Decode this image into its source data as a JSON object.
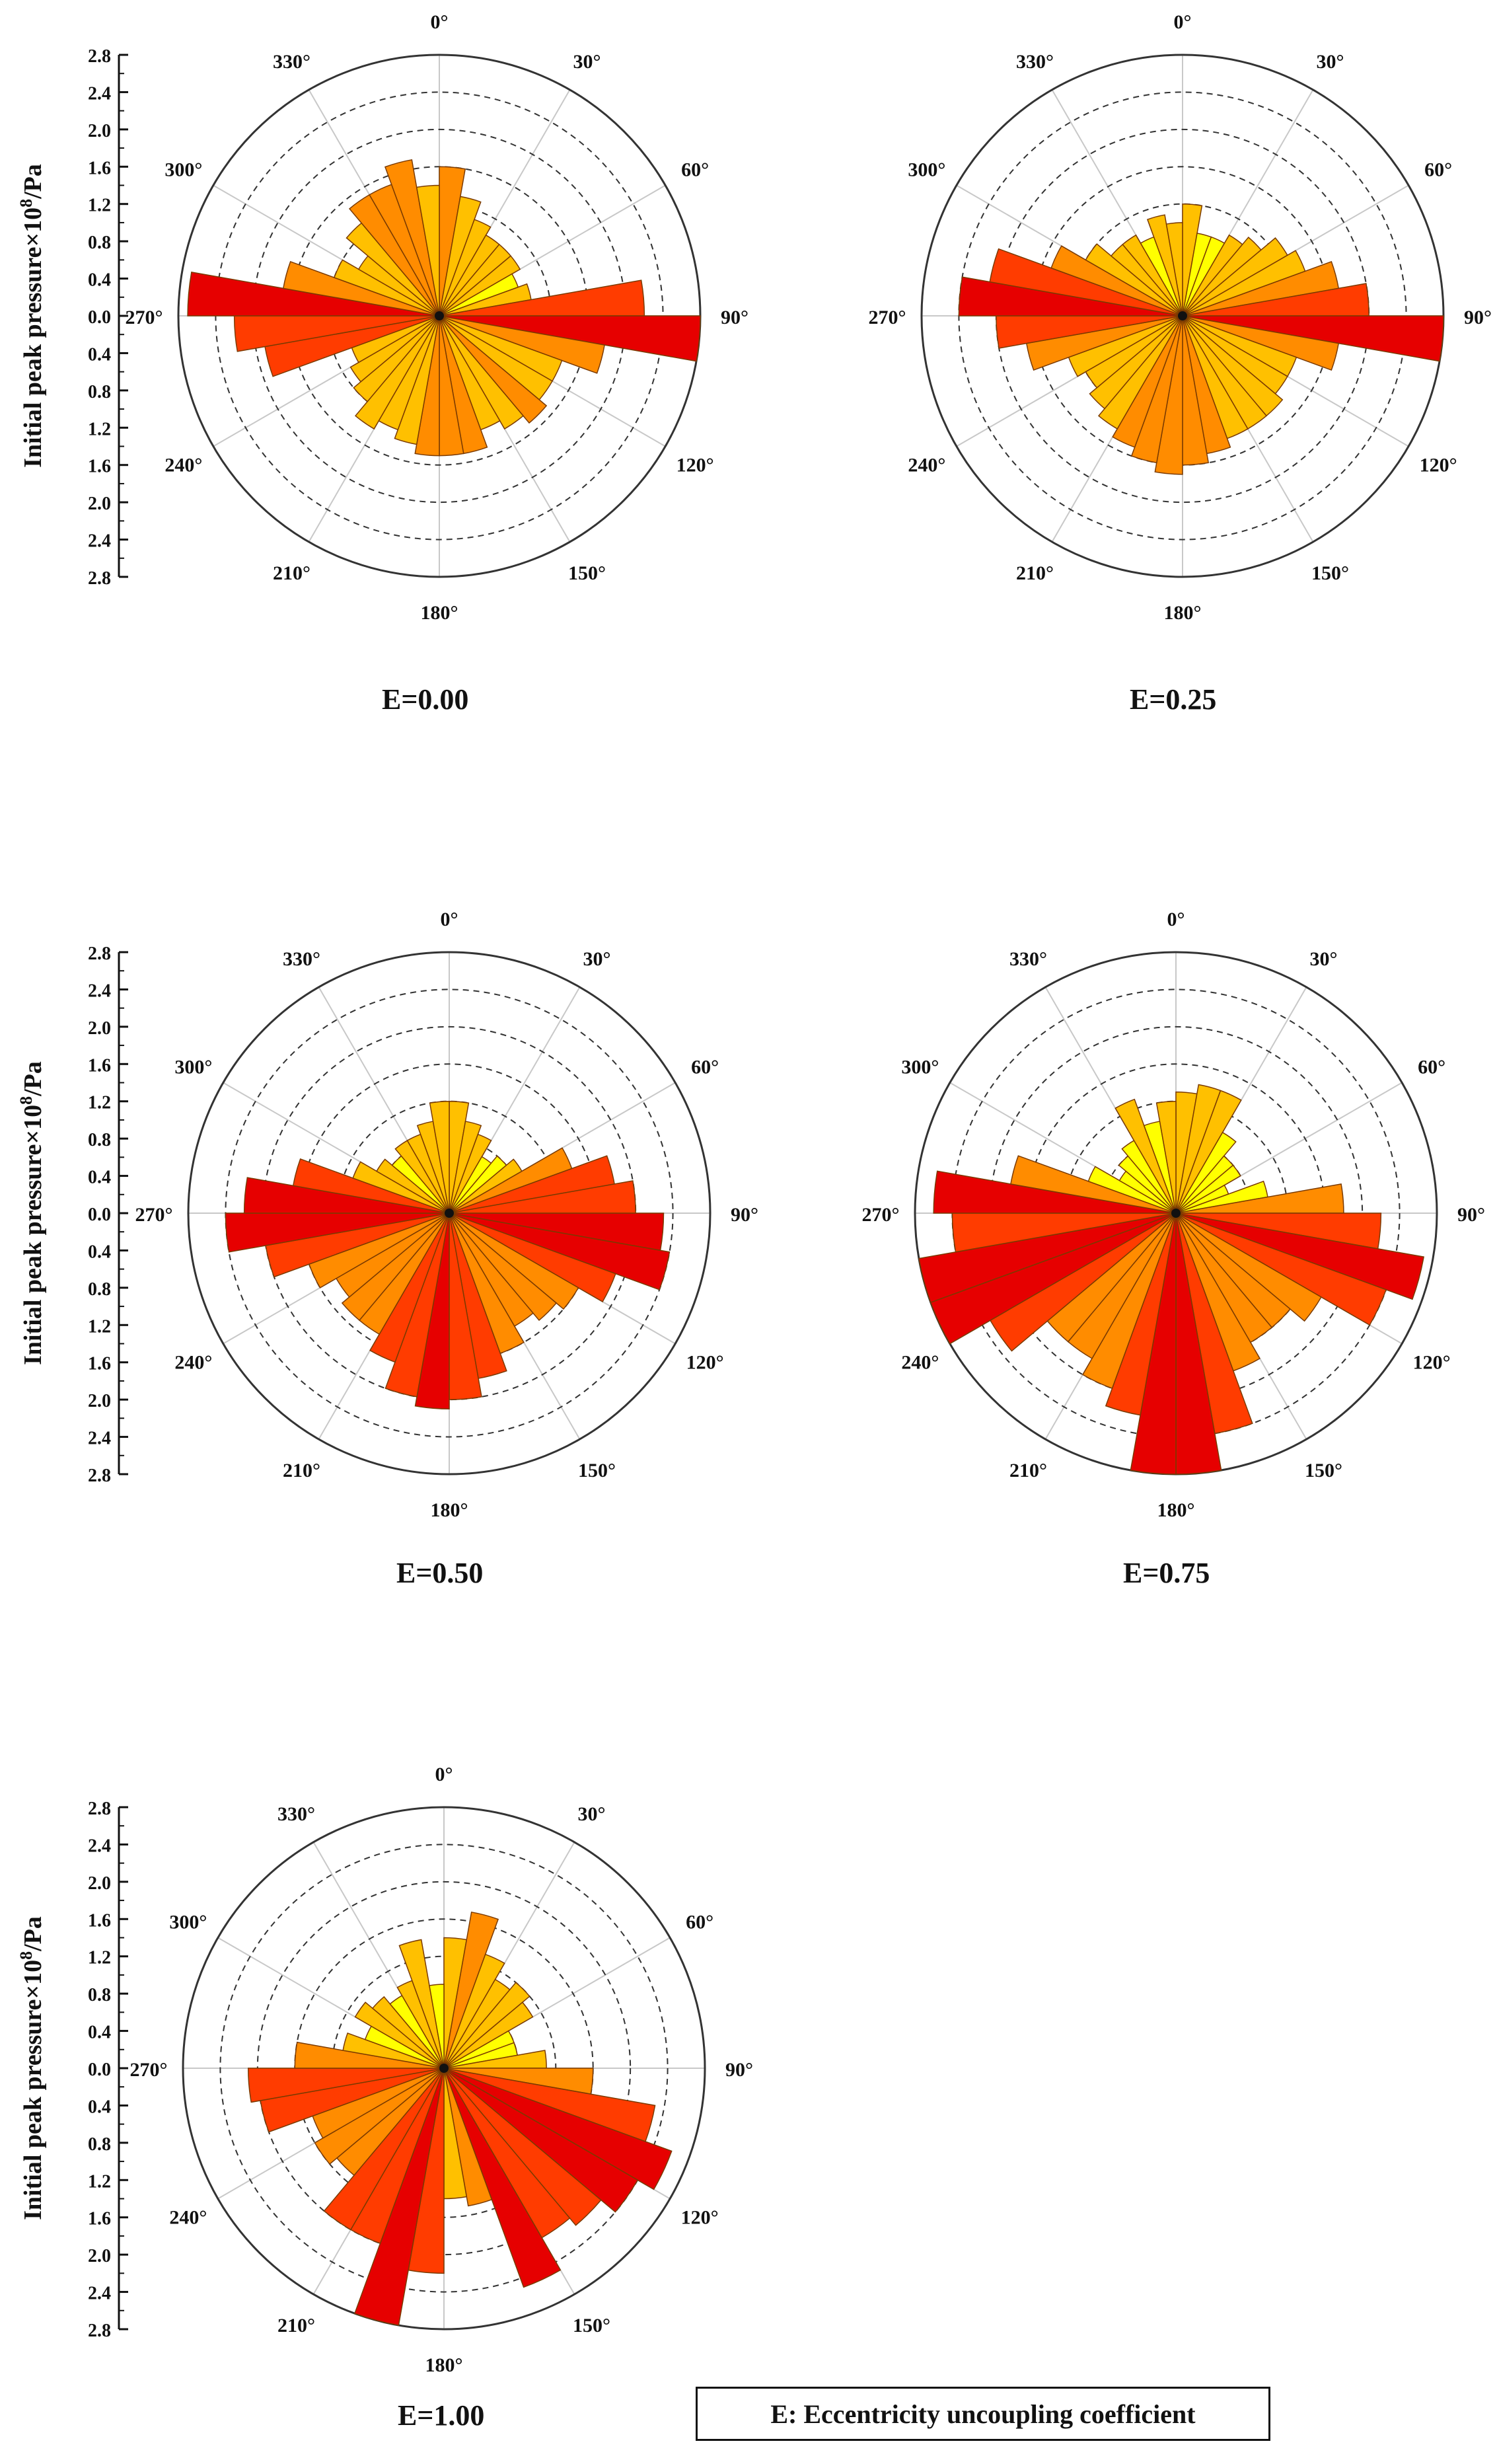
{
  "figure": {
    "legend_note": "E: Eccentricity uncoupling coefficient"
  },
  "colors": {
    "scale": [
      "#fffbe6",
      "#ffff00",
      "#ffc000",
      "#ff8c00",
      "#ff3c00",
      "#e60000"
    ],
    "grid": "#333333",
    "spoke": "#c8c8c8",
    "bar_edge": "#7a3a00"
  },
  "chart_data": [
    {
      "type": "polar-bar",
      "title": "E=0.00",
      "ylabel_main": "Initial peak pressure×10",
      "ylabel_sup": "8",
      "ylabel_unit": "/Pa",
      "ylim": [
        0,
        2.8
      ],
      "radial_ticks": [
        "2.8",
        "2.4",
        "2.0",
        "1.6",
        "1.2",
        "0.8",
        "0.4",
        "0.0",
        "0.4",
        "0.8",
        "1.2",
        "1.6",
        "2.0",
        "2.4",
        "2.8"
      ],
      "angle_labels": [
        "0°",
        "30°",
        "60°",
        "90°",
        "120°",
        "150°",
        "180°",
        "210°",
        "240°",
        "270°",
        "300°",
        "330°"
      ],
      "angle_step_deg": 10,
      "values": [
        1.6,
        1.3,
        1.1,
        1.0,
        1.0,
        1.0,
        0.9,
        1.0,
        2.2,
        2.8,
        1.8,
        1.4,
        1.4,
        1.5,
        1.4,
        1.3,
        1.5,
        1.5,
        1.5,
        1.4,
        1.3,
        1.4,
        1.2,
        1.1,
        1.0,
        1.9,
        2.2,
        2.7,
        1.7,
        1.2,
        1.0,
        1.3,
        1.5,
        1.5,
        1.7,
        1.4
      ]
    },
    {
      "type": "polar-bar",
      "title": "E=0.25",
      "ylabel_main": "",
      "ylabel_sup": "",
      "ylabel_unit": "",
      "ylim": [
        0,
        2.8
      ],
      "radial_ticks": [],
      "angle_labels": [
        "0°",
        "30°",
        "60°",
        "90°",
        "120°",
        "150°",
        "180°",
        "210°",
        "240°",
        "270°",
        "300°",
        "330°"
      ],
      "angle_step_deg": 10,
      "values": [
        1.2,
        0.9,
        0.9,
        1.0,
        1.1,
        1.3,
        1.4,
        1.7,
        2.0,
        2.8,
        1.7,
        1.3,
        1.3,
        1.4,
        1.4,
        1.4,
        1.5,
        1.6,
        1.7,
        1.6,
        1.5,
        1.4,
        1.3,
        1.2,
        1.3,
        1.7,
        2.0,
        2.4,
        2.1,
        1.5,
        1.2,
        1.0,
        1.0,
        0.9,
        1.1,
        1.0
      ]
    },
    {
      "type": "polar-bar",
      "title": "E=0.50",
      "ylabel_main": "Initial peak pressure×10",
      "ylabel_sup": "8",
      "ylabel_unit": "/Pa",
      "ylim": [
        0,
        2.8
      ],
      "radial_ticks": [
        "2.8",
        "2.4",
        "2.0",
        "1.6",
        "1.2",
        "0.8",
        "0.4",
        "0.0",
        "0.4",
        "0.8",
        "1.2",
        "1.6",
        "2.0",
        "2.4",
        "2.8"
      ],
      "angle_labels": [
        "0°",
        "30°",
        "60°",
        "90°",
        "120°",
        "150°",
        "180°",
        "210°",
        "240°",
        "270°",
        "300°",
        "330°"
      ],
      "angle_step_deg": 10,
      "values": [
        1.2,
        1.0,
        0.9,
        0.7,
        0.8,
        0.9,
        1.4,
        1.8,
        2.0,
        2.3,
        2.4,
        1.9,
        1.6,
        1.5,
        1.4,
        1.6,
        1.8,
        2.0,
        2.1,
        2.0,
        1.7,
        1.5,
        1.5,
        1.4,
        1.6,
        2.0,
        2.4,
        2.2,
        1.7,
        1.1,
        0.9,
        0.8,
        0.9,
        0.9,
        1.0,
        1.2
      ]
    },
    {
      "type": "polar-bar",
      "title": "E=0.75",
      "ylabel_main": "",
      "ylabel_sup": "",
      "ylabel_unit": "",
      "ylim": [
        0,
        2.8
      ],
      "radial_ticks": [],
      "angle_labels": [
        "0°",
        "30°",
        "60°",
        "90°",
        "120°",
        "150°",
        "180°",
        "210°",
        "240°",
        "270°",
        "300°",
        "330°"
      ],
      "angle_step_deg": 10,
      "values": [
        1.3,
        1.4,
        1.4,
        1.0,
        0.8,
        0.8,
        0.6,
        1.0,
        1.8,
        2.2,
        2.7,
        2.4,
        1.8,
        1.6,
        1.6,
        1.8,
        2.4,
        2.9,
        2.9,
        2.2,
        2.0,
        1.8,
        1.8,
        2.3,
        2.8,
        3.0,
        2.4,
        2.6,
        1.8,
        1.0,
        0.7,
        0.8,
        0.9,
        1.3,
        1.0,
        1.2
      ]
    },
    {
      "type": "polar-bar",
      "title": "E=1.00",
      "ylabel_main": "Initial peak pressure×10",
      "ylabel_sup": "8",
      "ylabel_unit": "/Pa",
      "ylim": [
        0,
        2.8
      ],
      "radial_ticks": [
        "2.8",
        "2.4",
        "2.0",
        "1.6",
        "1.2",
        "0.8",
        "0.4",
        "0.0",
        "0.4",
        "0.8",
        "1.2",
        "1.6",
        "2.0",
        "2.4",
        "2.8"
      ],
      "angle_labels": [
        "0°",
        "30°",
        "60°",
        "90°",
        "120°",
        "150°",
        "180°",
        "210°",
        "240°",
        "270°",
        "300°",
        "330°"
      ],
      "angle_step_deg": 10,
      "values": [
        1.4,
        1.7,
        1.3,
        1.1,
        1.2,
        1.1,
        0.8,
        0.8,
        1.1,
        1.6,
        2.3,
        2.6,
        2.4,
        2.2,
        2.1,
        2.5,
        1.5,
        1.4,
        2.2,
        2.8,
        2.0,
        2.0,
        1.5,
        1.6,
        1.5,
        2.0,
        2.1,
        1.6,
        1.1,
        0.9,
        1.1,
        1.0,
        0.9,
        1.0,
        1.4,
        0.9
      ]
    }
  ]
}
